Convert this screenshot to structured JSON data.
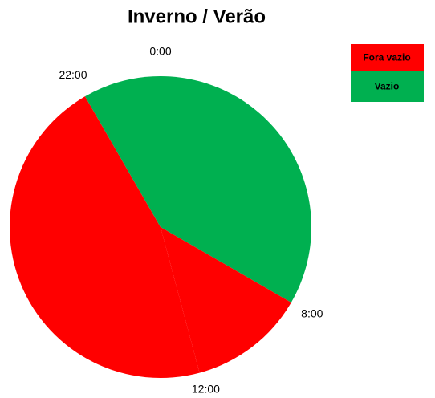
{
  "chart_data": {
    "type": "pie",
    "title": "Inverno / Verão",
    "categories": [
      "0:00",
      "8:00",
      "12:00",
      "22:00"
    ],
    "values": [
      8,
      3,
      11,
      2
    ],
    "colors": [
      "#00b050",
      "#ff0000",
      "#ff0000",
      "#00b050"
    ],
    "legend": [
      {
        "name": "Fora vazio",
        "color": "#ff0000"
      },
      {
        "name": "Vazio",
        "color": "#00b050"
      }
    ]
  }
}
